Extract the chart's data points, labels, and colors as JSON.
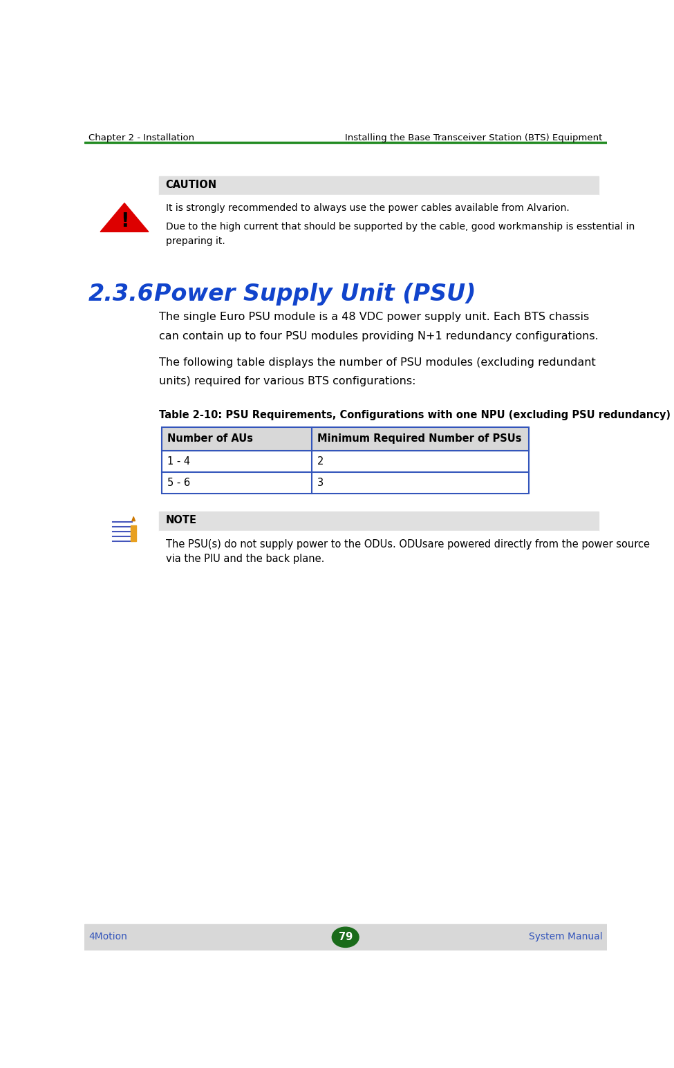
{
  "header_left": "Chapter 2 - Installation",
  "header_right": "Installing the Base Transceiver Station (BTS) Equipment",
  "header_line_color": "#228B22",
  "footer_bg_color": "#D8D8D8",
  "footer_left": "4Motion",
  "footer_right": "System Manual",
  "footer_page": "79",
  "footer_page_bg": "#1a6b1a",
  "footer_text_color": "#3355BB",
  "caution_box_bg": "#E0E0E0",
  "caution_label": "CAUTION",
  "caution_text1": "It is strongly recommended to always use the power cables available from Alvarion.",
  "caution_text2": "Due to the high current that should be supported by the cable, good workmanship is esstential in\npreparing it.",
  "section_number": "2.3.6",
  "section_title": "Power Supply Unit (PSU)",
  "section_color": "#1144CC",
  "body_text1_line1": "The single Euro PSU module is a 48 VDC power supply unit. Each BTS chassis",
  "body_text1_line2": "can contain up to four PSU modules providing N+1 redundancy configurations.",
  "body_text2_line1": "The following table displays the number of PSU modules (excluding redundant",
  "body_text2_line2": "units) required for various BTS configurations:",
  "table_title": "Table 2-10: PSU Requirements, Configurations with one NPU (excluding PSU redundancy)",
  "table_header": [
    "Number of AUs",
    "Minimum Required Number of PSUs"
  ],
  "table_rows": [
    [
      "1 - 4",
      "2"
    ],
    [
      "5 - 6",
      "3"
    ]
  ],
  "table_header_bg": "#D8D8D8",
  "table_border_color": "#3355BB",
  "note_box_bg": "#E0E0E0",
  "note_label": "NOTE",
  "note_text1": "The PSU(s) do not supply power to the ODUs. ODUsare powered directly from the power source",
  "note_text2": "via the PIU and the back plane.",
  "body_font_size": 11.5,
  "header_font_size": 9.5,
  "section_num_font_size": 24,
  "section_title_font_size": 24,
  "table_title_font_size": 10.5,
  "note_font_size": 10.5
}
